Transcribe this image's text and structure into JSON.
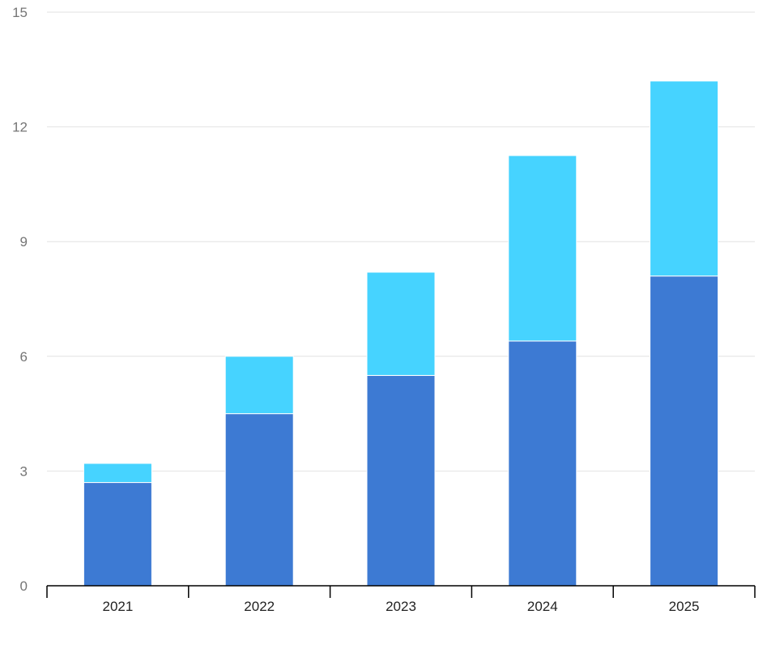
{
  "chart_data": {
    "type": "bar",
    "stacked": true,
    "title": "",
    "xlabel": "",
    "ylabel": "",
    "categories": [
      "2021",
      "2022",
      "2023",
      "2024",
      "2025"
    ],
    "series": [
      {
        "color": "#3d7ad3",
        "values": [
          2.7,
          4.5,
          5.5,
          6.4,
          8.1
        ]
      },
      {
        "color": "#46d3ff",
        "values": [
          0.5,
          1.5,
          2.7,
          4.85,
          5.1
        ]
      }
    ],
    "ylim": [
      0,
      15
    ],
    "yticks": [
      "0",
      "3",
      "6",
      "9",
      "12",
      "15"
    ],
    "grid": true,
    "legend": "none"
  }
}
